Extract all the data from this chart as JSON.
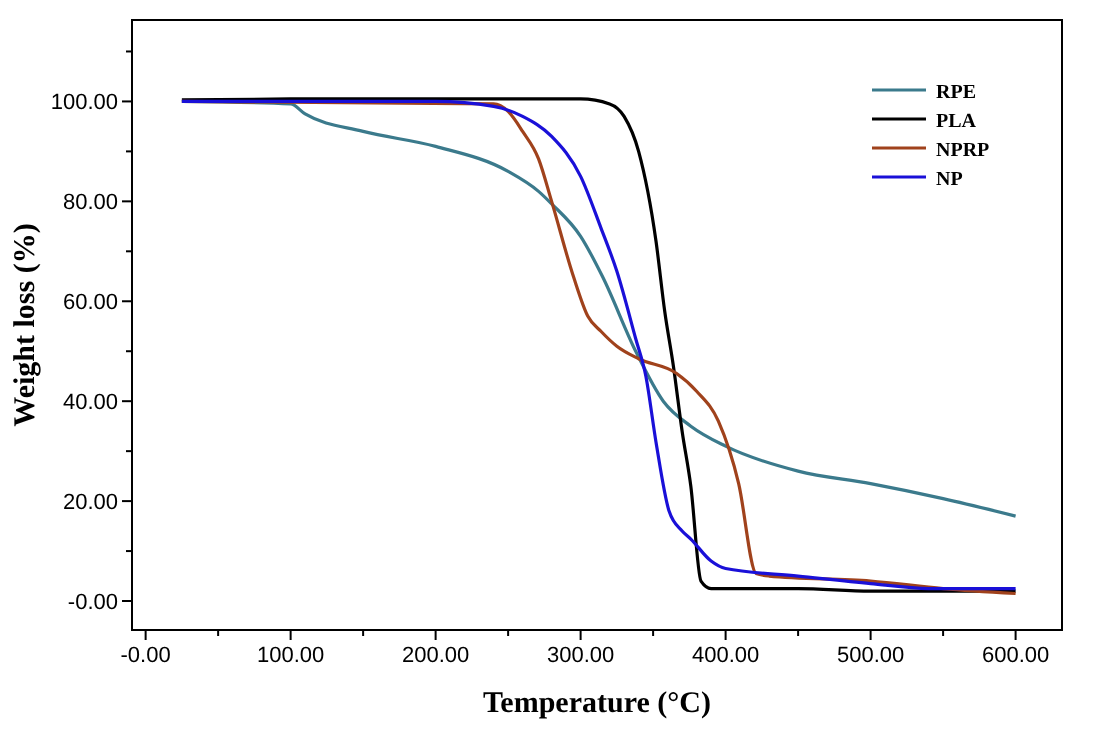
{
  "chart_data": {
    "type": "line",
    "xlabel": "Temperature (°C)",
    "ylabel": "Weight loss (%)",
    "xlim": [
      -9.4,
      632
    ],
    "ylim": [
      -5.8,
      116.3
    ],
    "xticks": [
      {
        "value": 0,
        "label": "-0.00"
      },
      {
        "value": 50,
        "label": null
      },
      {
        "value": 100,
        "label": "100.00"
      },
      {
        "value": 150,
        "label": null
      },
      {
        "value": 200,
        "label": "200.00"
      },
      {
        "value": 250,
        "label": null
      },
      {
        "value": 300,
        "label": "300.00"
      },
      {
        "value": 350,
        "label": null
      },
      {
        "value": 400,
        "label": "400.00"
      },
      {
        "value": 450,
        "label": null
      },
      {
        "value": 500,
        "label": "500.00"
      },
      {
        "value": 550,
        "label": null
      },
      {
        "value": 600,
        "label": "600.00"
      }
    ],
    "yticks": [
      {
        "value": 0,
        "label": "-0.00"
      },
      {
        "value": 10,
        "label": null
      },
      {
        "value": 20,
        "label": "20.00"
      },
      {
        "value": 30,
        "label": null
      },
      {
        "value": 40,
        "label": "40.00"
      },
      {
        "value": 50,
        "label": null
      },
      {
        "value": 60,
        "label": "60.00"
      },
      {
        "value": 70,
        "label": null
      },
      {
        "value": 80,
        "label": "80.00"
      },
      {
        "value": 90,
        "label": null
      },
      {
        "value": 100,
        "label": "100.00"
      },
      {
        "value": 110,
        "label": null
      }
    ],
    "grid": false,
    "legend": "top right",
    "marker": "none",
    "line_style": "solid",
    "series": [
      {
        "name": "RPE",
        "color": "#3b7a8c",
        "x": [
          25,
          100,
          110,
          150,
          200,
          250,
          271,
          280,
          300,
          315,
          338,
          357,
          376,
          400,
          450,
          500,
          550,
          600
        ],
        "values": [
          100,
          99.5,
          97.5,
          94,
          91,
          86,
          82,
          79.5,
          73,
          65,
          50,
          40,
          35,
          31,
          26,
          23.5,
          20.5,
          17
        ]
      },
      {
        "name": "PLA",
        "color": "#000000",
        "x": [
          25,
          100,
          300,
          320,
          330,
          340,
          352,
          358,
          364,
          370,
          376,
          383,
          390,
          450,
          500,
          600
        ],
        "values": [
          100.3,
          100.5,
          100.5,
          99.5,
          97,
          90,
          72,
          58,
          47,
          34,
          23,
          4,
          2.5,
          2.5,
          2,
          2
        ]
      },
      {
        "name": "NPRP",
        "color": "#a0421c",
        "x": [
          25,
          240,
          250,
          260,
          271,
          280,
          295,
          305,
          314,
          325,
          340,
          366,
          380,
          395,
          409,
          421,
          430,
          500,
          550,
          600
        ],
        "values": [
          100,
          99.5,
          98,
          94,
          88.5,
          80,
          65,
          57,
          54,
          51,
          48.5,
          45.6,
          42,
          36,
          23.5,
          5.5,
          5,
          4,
          2.5,
          1.5
        ]
      },
      {
        "name": "NP",
        "color": "#1a10d8",
        "x": [
          25,
          200,
          240,
          260,
          280,
          300,
          314,
          325,
          338,
          345,
          352,
          361,
          370,
          376,
          390,
          400,
          450,
          500,
          540,
          600
        ],
        "values": [
          100,
          100,
          99,
          97,
          93,
          85,
          74.7,
          66,
          52.5,
          45,
          31.8,
          18,
          14,
          12.4,
          8,
          6.5,
          5,
          3.5,
          2.5,
          2.5
        ]
      }
    ]
  }
}
